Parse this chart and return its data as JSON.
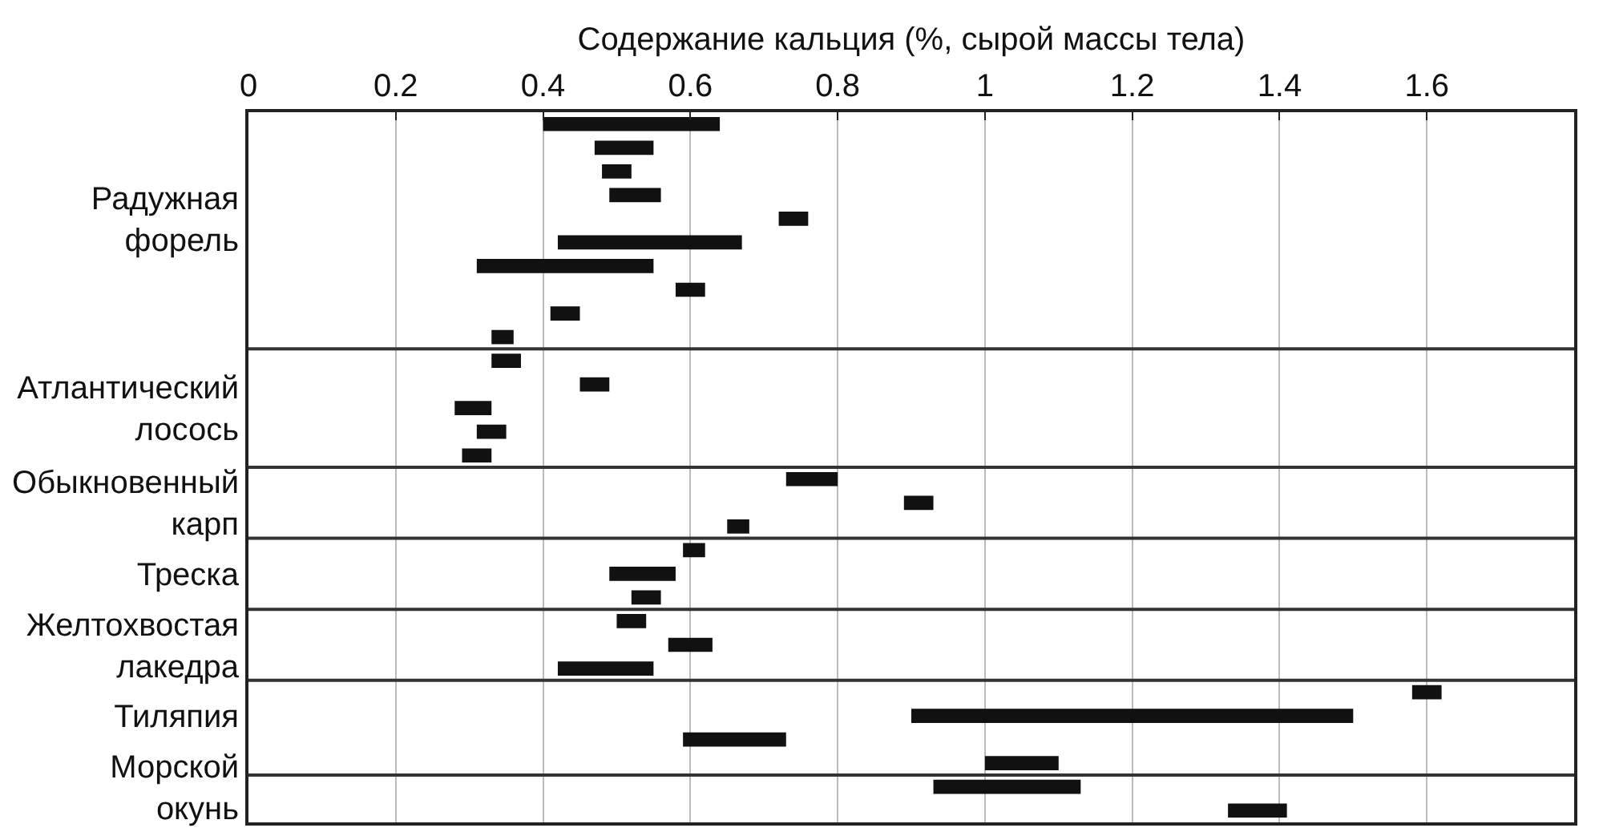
{
  "chart_data": {
    "type": "bar",
    "orientation": "horizontal",
    "xlabel": "Содержание кальция (%, сырой массы тела)",
    "categories": [
      null,
      null,
      null,
      null,
      "Радужная форель",
      null,
      null,
      null,
      null,
      null,
      null,
      null,
      "Атлантический лосось",
      null,
      null,
      null,
      "Обыкновенный карп",
      null,
      null,
      "Треска",
      null,
      null,
      "Желтохвостая лакедра",
      null,
      null,
      "Тиляпия",
      null,
      null,
      "Морской окунь",
      null
    ],
    "base": [
      0.4,
      0.47,
      0.48,
      0.49,
      0.72,
      0.42,
      0.31,
      0.58,
      0.41,
      0.33,
      0.33,
      0.45,
      0.28,
      0.31,
      0.29,
      0.73,
      0.89,
      0.65,
      0.59,
      0.49,
      0.52,
      0.5,
      0.57,
      0.42,
      1.58,
      0.9,
      0.59,
      1.0,
      0.93,
      1.33
    ],
    "values": [
      0.24,
      0.08,
      0.04,
      0.07,
      0.04,
      0.25,
      0.24,
      0.04,
      0.04,
      0.03,
      0.04,
      0.04,
      0.05,
      0.04,
      0.04,
      0.07,
      0.04,
      0.03,
      0.03,
      0.09,
      0.04,
      0.04,
      0.06,
      0.13,
      0.04,
      0.6,
      0.14,
      0.1,
      0.2,
      0.08
    ],
    "color": "#111111",
    "xlim": [
      0,
      1.8
    ],
    "xticks": [
      0,
      0.2,
      0.4,
      0.6,
      0.8,
      1.0,
      1.2,
      1.4,
      1.6
    ],
    "grid": "x"
  }
}
